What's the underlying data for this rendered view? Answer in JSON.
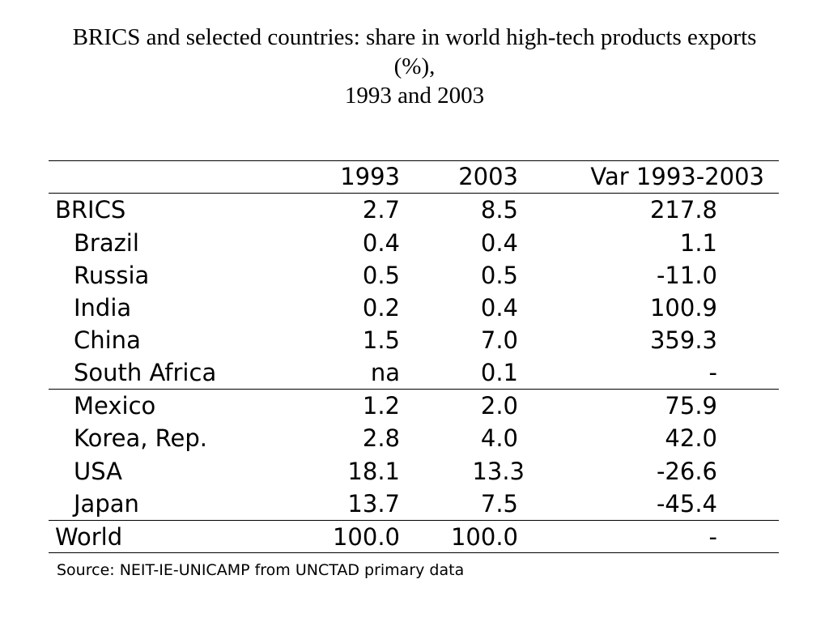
{
  "title": {
    "line1": "BRICS and selected countries: share in world high-tech products exports",
    "line2": "(%),",
    "line3": "1993 and 2003"
  },
  "table": {
    "headers": [
      "",
      "1993",
      "2003",
      "Var 1993-2003"
    ],
    "rows": [
      {
        "name": "BRICS",
        "v1993": "2.7",
        "v2003": "8.5",
        "var": "217.8"
      },
      {
        "name": "Brazil",
        "v1993": "0.4",
        "v2003": "0.4",
        "var": "1.1"
      },
      {
        "name": "Russia",
        "v1993": "0.5",
        "v2003": "0.5",
        "var": "-11.0"
      },
      {
        "name": "India",
        "v1993": "0.2",
        "v2003": "0.4",
        "var": "100.9"
      },
      {
        "name": "China",
        "v1993": "1.5",
        "v2003": "7.0",
        "var": "359.3"
      },
      {
        "name": "South Africa",
        "v1993": "na",
        "v2003": "0.1",
        "var": "-"
      },
      {
        "name": "Mexico",
        "v1993": "1.2",
        "v2003": "2.0",
        "var": "75.9"
      },
      {
        "name": "Korea, Rep.",
        "v1993": "2.8",
        "v2003": "4.0",
        "var": "42.0"
      },
      {
        "name": "USA",
        "v1993": "18.1",
        "v2003": "13.3",
        "var": "-26.6"
      },
      {
        "name": "Japan",
        "v1993": "13.7",
        "v2003": "7.5",
        "var": "-45.4"
      },
      {
        "name": "World",
        "v1993": "100.0",
        "v2003": "100.0",
        "var": "-"
      }
    ]
  },
  "source": "Source: NEIT-IE-UNICAMP from UNCTAD primary data"
}
